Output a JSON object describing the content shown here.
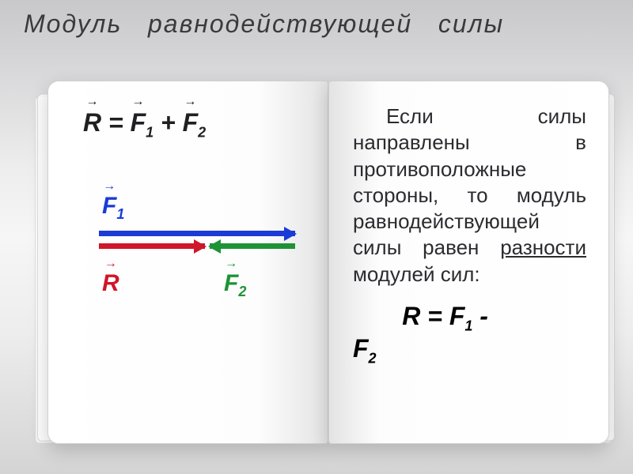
{
  "title_word1": "Модуль",
  "title_word2": "равнодействующей",
  "title_word3": "силы",
  "colors": {
    "f1": "#1a3bd6",
    "f2": "#1e9336",
    "r": "#d0162a"
  },
  "left": {
    "eq_R": "R",
    "eq_eq": " = ",
    "eq_F": "F",
    "eq_plus": " + ",
    "sub1": "1",
    "sub2": "2",
    "lbl_F1": "F",
    "lbl_F2": "F",
    "lbl_R": "R"
  },
  "right": {
    "para": "Если силы направлены в противоположные стороны, то модуль равнодействующей силы равен ",
    "underlined": "разности",
    "after": " модулей сил:",
    "eq_R": "R",
    "eq_eq": " = ",
    "eq_F": "F",
    "eq_minus": " - ",
    "sub1": "1",
    "sub2": "2"
  }
}
